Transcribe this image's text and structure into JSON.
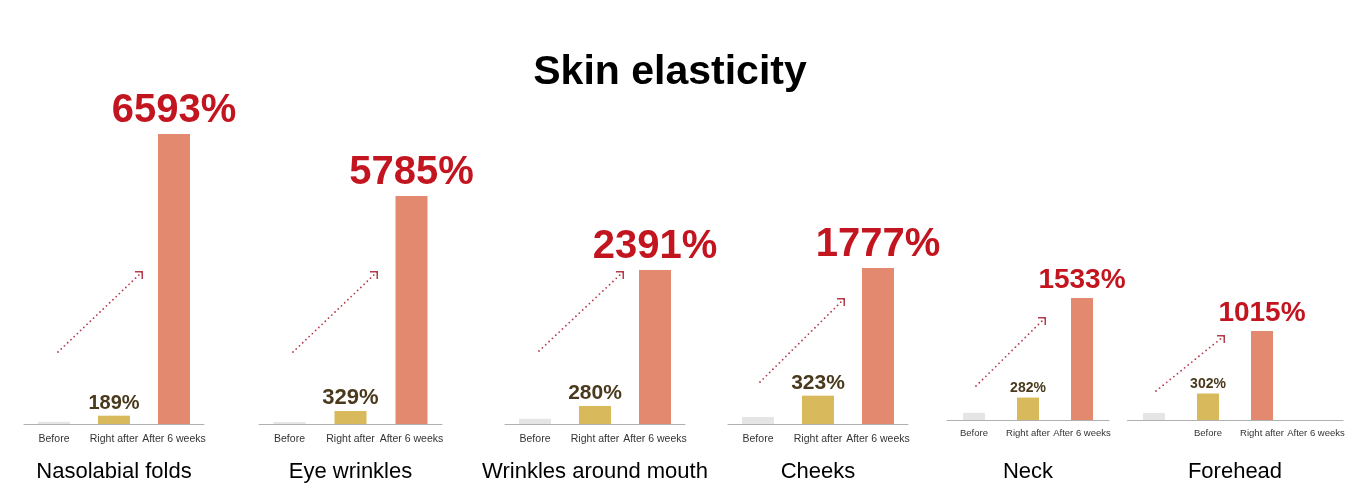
{
  "chart_data": [
    {
      "type": "other",
      "title": "Skin elasticity"
    },
    {
      "type": "bar",
      "xlabel": "Nasolabial folds",
      "categories": [
        "Before",
        "Right after",
        "After 6 weeks"
      ],
      "values": [
        50,
        189,
        6593
      ],
      "colors": [
        "#e5e5e5",
        "#d8b95b",
        "#e28970"
      ],
      "value_labels": [
        null,
        "189%",
        "6593%"
      ],
      "tick_labels": "x"
    },
    {
      "type": "bar",
      "xlabel": "Eye wrinkles",
      "categories": [
        "Before",
        "Right after",
        "After 6 weeks"
      ],
      "values": [
        50,
        329,
        5785
      ],
      "colors": [
        "#e5e5e5",
        "#d8b95b",
        "#e28970"
      ],
      "value_labels": [
        null,
        "329%",
        "5785%"
      ],
      "tick_labels": "x"
    },
    {
      "type": "bar",
      "xlabel": "Wrinkles around mouth",
      "categories": [
        "Before",
        "Right after",
        "After 6 weeks"
      ],
      "values": [
        80,
        280,
        2391
      ],
      "colors": [
        "#e5e5e5",
        "#d8b95b",
        "#e28970"
      ],
      "value_labels": [
        null,
        "280%",
        "2391%"
      ],
      "tick_labels": "x"
    },
    {
      "type": "bar",
      "xlabel": "Cheeks",
      "categories": [
        "Before",
        "Right after",
        "After 6 weeks"
      ],
      "values": [
        80,
        323,
        1777
      ],
      "colors": [
        "#e5e5e5",
        "#d8b95b",
        "#e28970"
      ],
      "value_labels": [
        null,
        "323%",
        "1777%"
      ],
      "tick_labels": "x"
    },
    {
      "type": "bar",
      "xlabel": "Neck",
      "categories": [
        "Before",
        "Right after",
        "After 6 weeks"
      ],
      "values": [
        90,
        282,
        1533
      ],
      "colors": [
        "#e5e5e5",
        "#d8b95b",
        "#e28970"
      ],
      "value_labels": [
        null,
        "282%",
        "1533%"
      ],
      "tick_labels": "x"
    },
    {
      "type": "bar",
      "xlabel": "Forehead",
      "categories": [
        null,
        "Before",
        "Right after",
        "After 6 weeks"
      ],
      "values": [
        80,
        302,
        1015,
        null
      ],
      "colors": [
        "#e5e5e5",
        "#d8b95b",
        "#e28970",
        null
      ],
      "value_labels": [
        null,
        "302%",
        "1015%",
        null
      ],
      "tick_labels": "x"
    }
  ]
}
